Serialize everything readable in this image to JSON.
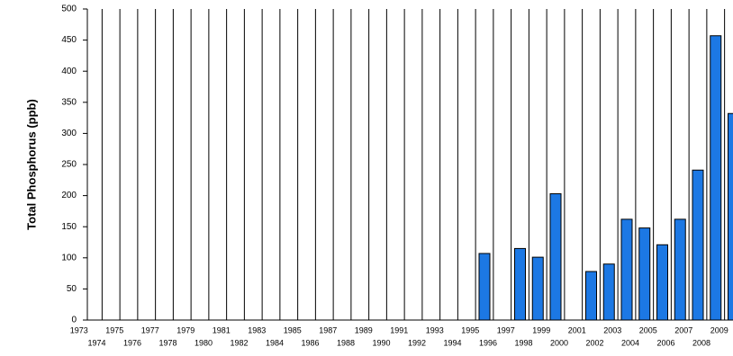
{
  "chart_data": {
    "type": "bar",
    "y_label": "Total Phosphorus (ppb)",
    "categories": [
      "1973",
      "1974",
      "1975",
      "1976",
      "1977",
      "1978",
      "1979",
      "1980",
      "1981",
      "1982",
      "1983",
      "1984",
      "1985",
      "1986",
      "1987",
      "1988",
      "1989",
      "1990",
      "1991",
      "1992",
      "1993",
      "1994",
      "1995",
      "1996",
      "1997",
      "1998",
      "1999",
      "2000",
      "2001",
      "2002",
      "2003",
      "2004",
      "2005",
      "2006",
      "2007",
      "2008",
      "2009",
      null
    ],
    "values": [
      null,
      null,
      null,
      null,
      null,
      null,
      null,
      null,
      null,
      null,
      null,
      null,
      null,
      null,
      null,
      null,
      null,
      null,
      null,
      null,
      null,
      null,
      null,
      107,
      null,
      115,
      101,
      203,
      null,
      78,
      90,
      162,
      148,
      121,
      162,
      241,
      457,
      332
    ],
    "color": "#1c78e4",
    "ylim": [
      0,
      500
    ],
    "yticks": [
      0,
      50,
      100,
      150,
      200,
      250,
      300,
      350,
      400,
      450,
      500
    ],
    "grid": true
  }
}
